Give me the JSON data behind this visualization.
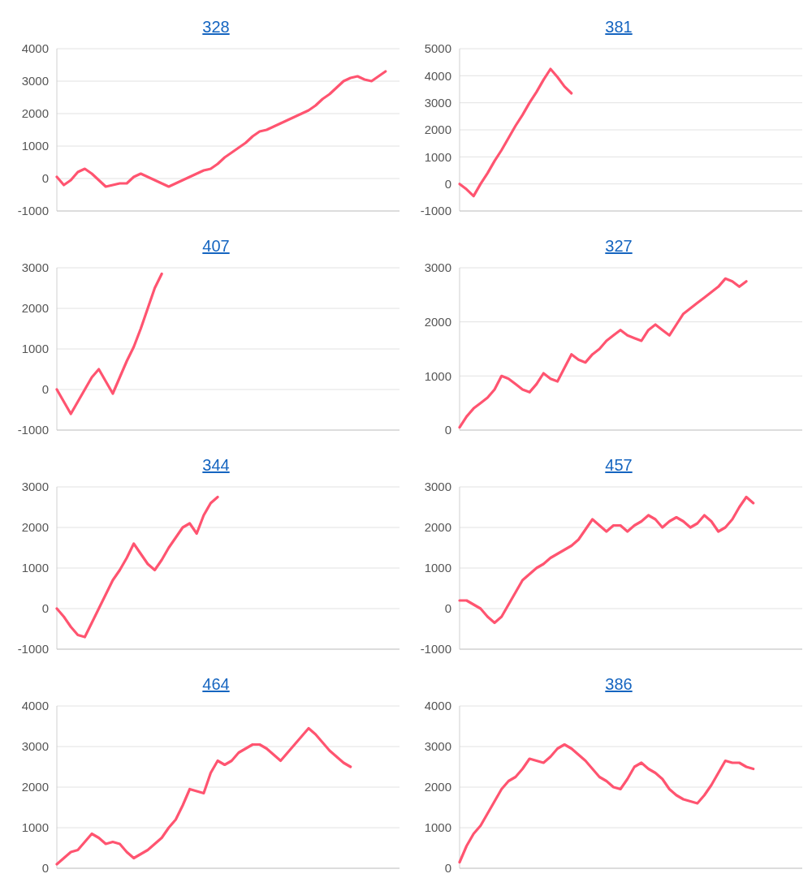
{
  "chart_data": [
    {
      "type": "line",
      "title": "328",
      "categories": [
        null,
        null,
        null,
        null,
        null,
        null,
        null,
        null,
        null,
        null,
        null,
        null,
        null,
        null,
        null,
        null,
        null,
        null,
        null,
        null,
        null,
        null,
        null,
        null,
        null,
        null,
        null,
        null,
        null,
        null,
        null,
        null,
        null,
        null,
        null,
        null,
        null,
        null,
        null,
        null,
        null,
        null,
        null,
        null,
        null,
        null,
        null,
        null,
        null,
        null
      ],
      "ylim": [
        -1000,
        4000
      ],
      "yticks": [
        -1000,
        0,
        1000,
        2000,
        3000,
        4000
      ],
      "grid": "y",
      "series": [
        {
          "color": "#ff5470",
          "values": [
            50,
            -200,
            -50,
            200,
            300,
            150,
            -50,
            -250,
            -200,
            -150,
            -150,
            50,
            150,
            50,
            -50,
            -150,
            -250,
            -150,
            -50,
            50,
            150,
            250,
            300,
            450,
            650,
            800,
            950,
            1100,
            1300,
            1450,
            1500,
            1600,
            1700,
            1800,
            1900,
            2000,
            2100,
            2250,
            2450,
            2600,
            2800,
            3000,
            3100,
            3150,
            3050,
            3000,
            3150,
            3300,
            null,
            null
          ]
        }
      ]
    },
    {
      "type": "line",
      "title": "381",
      "categories": [
        null,
        null,
        null,
        null,
        null,
        null,
        null,
        null,
        null,
        null,
        null,
        null,
        null,
        null,
        null,
        null,
        null,
        null,
        null,
        null,
        null,
        null,
        null,
        null,
        null,
        null,
        null,
        null,
        null,
        null,
        null,
        null,
        null,
        null,
        null,
        null,
        null,
        null,
        null,
        null,
        null,
        null,
        null,
        null,
        null,
        null,
        null,
        null,
        null,
        null
      ],
      "ylim": [
        -1000,
        5000
      ],
      "yticks": [
        -1000,
        0,
        1000,
        2000,
        3000,
        4000,
        5000
      ],
      "grid": "y",
      "series": [
        {
          "color": "#ff5470",
          "values": [
            0,
            -200,
            -450,
            0,
            400,
            850,
            1250,
            1700,
            2150,
            2550,
            3000,
            3400,
            3850,
            4250,
            3950,
            3600,
            3350,
            null,
            null,
            null,
            null,
            null,
            null,
            null,
            null,
            null,
            null,
            null,
            null,
            null,
            null,
            null,
            null,
            null,
            null,
            null,
            null,
            null,
            null,
            null,
            null,
            null,
            null,
            null,
            null,
            null,
            null,
            null,
            null,
            null
          ]
        }
      ]
    },
    {
      "type": "line",
      "title": "407",
      "categories": [
        null,
        null,
        null,
        null,
        null,
        null,
        null,
        null,
        null,
        null,
        null,
        null,
        null,
        null,
        null,
        null,
        null,
        null,
        null,
        null,
        null,
        null,
        null,
        null,
        null,
        null,
        null,
        null,
        null,
        null,
        null,
        null,
        null,
        null,
        null,
        null,
        null,
        null,
        null,
        null,
        null,
        null,
        null,
        null,
        null,
        null,
        null,
        null,
        null,
        null
      ],
      "ylim": [
        -1000,
        3000
      ],
      "yticks": [
        -1000,
        0,
        1000,
        2000,
        3000
      ],
      "grid": "y",
      "series": [
        {
          "color": "#ff5470",
          "values": [
            0,
            -300,
            -600,
            -300,
            0,
            300,
            500,
            200,
            -100,
            300,
            700,
            1050,
            1500,
            2000,
            2500,
            2850,
            null,
            null,
            null,
            null,
            null,
            null,
            null,
            null,
            null,
            null,
            null,
            null,
            null,
            null,
            null,
            null,
            null,
            null,
            null,
            null,
            null,
            null,
            null,
            null,
            null,
            null,
            null,
            null,
            null,
            null,
            null,
            null,
            null,
            null
          ]
        }
      ]
    },
    {
      "type": "line",
      "title": "327",
      "categories": [
        null,
        null,
        null,
        null,
        null,
        null,
        null,
        null,
        null,
        null,
        null,
        null,
        null,
        null,
        null,
        null,
        null,
        null,
        null,
        null,
        null,
        null,
        null,
        null,
        null,
        null,
        null,
        null,
        null,
        null,
        null,
        null,
        null,
        null,
        null,
        null,
        null,
        null,
        null,
        null,
        null,
        null,
        null,
        null,
        null,
        null,
        null,
        null,
        null,
        null
      ],
      "ylim": [
        0,
        3000
      ],
      "yticks": [
        0,
        1000,
        2000,
        3000
      ],
      "grid": "y",
      "series": [
        {
          "color": "#ff5470",
          "values": [
            50,
            250,
            400,
            500,
            600,
            750,
            1000,
            950,
            850,
            750,
            700,
            850,
            1050,
            950,
            900,
            1150,
            1400,
            1300,
            1250,
            1400,
            1500,
            1650,
            1750,
            1850,
            1750,
            1700,
            1650,
            1850,
            1950,
            1850,
            1750,
            1950,
            2150,
            2250,
            2350,
            2450,
            2550,
            2650,
            2800,
            2750,
            2650,
            2750,
            null,
            null,
            null,
            null,
            null,
            null,
            null,
            null
          ]
        }
      ]
    },
    {
      "type": "line",
      "title": "344",
      "categories": [
        null,
        null,
        null,
        null,
        null,
        null,
        null,
        null,
        null,
        null,
        null,
        null,
        null,
        null,
        null,
        null,
        null,
        null,
        null,
        null,
        null,
        null,
        null,
        null,
        null,
        null,
        null,
        null,
        null,
        null,
        null,
        null,
        null,
        null,
        null,
        null,
        null,
        null,
        null,
        null,
        null,
        null,
        null,
        null,
        null,
        null,
        null,
        null,
        null,
        null
      ],
      "ylim": [
        -1000,
        3000
      ],
      "yticks": [
        -1000,
        0,
        1000,
        2000,
        3000
      ],
      "grid": "y",
      "series": [
        {
          "color": "#ff5470",
          "values": [
            0,
            -200,
            -450,
            -650,
            -700,
            -350,
            0,
            350,
            700,
            950,
            1250,
            1600,
            1350,
            1100,
            950,
            1200,
            1500,
            1750,
            2000,
            2100,
            1850,
            2300,
            2600,
            2750,
            null,
            null,
            null,
            null,
            null,
            null,
            null,
            null,
            null,
            null,
            null,
            null,
            null,
            null,
            null,
            null,
            null,
            null,
            null,
            null,
            null,
            null,
            null,
            null,
            null,
            null
          ]
        }
      ]
    },
    {
      "type": "line",
      "title": "457",
      "categories": [
        null,
        null,
        null,
        null,
        null,
        null,
        null,
        null,
        null,
        null,
        null,
        null,
        null,
        null,
        null,
        null,
        null,
        null,
        null,
        null,
        null,
        null,
        null,
        null,
        null,
        null,
        null,
        null,
        null,
        null,
        null,
        null,
        null,
        null,
        null,
        null,
        null,
        null,
        null,
        null,
        null,
        null,
        null,
        null,
        null,
        null,
        null,
        null,
        null,
        null
      ],
      "ylim": [
        -1000,
        3000
      ],
      "yticks": [
        -1000,
        0,
        1000,
        2000,
        3000
      ],
      "grid": "y",
      "series": [
        {
          "color": "#ff5470",
          "values": [
            200,
            200,
            100,
            0,
            -200,
            -350,
            -200,
            100,
            400,
            700,
            850,
            1000,
            1100,
            1250,
            1350,
            1450,
            1550,
            1700,
            1950,
            2200,
            2050,
            1900,
            2050,
            2050,
            1900,
            2050,
            2150,
            2300,
            2200,
            2000,
            2150,
            2250,
            2150,
            2000,
            2100,
            2300,
            2150,
            1900,
            2000,
            2200,
            2500,
            2750,
            2600,
            null,
            null,
            null,
            null,
            null,
            null,
            null
          ]
        }
      ]
    },
    {
      "type": "line",
      "title": "464",
      "categories": [
        null,
        null,
        null,
        null,
        null,
        null,
        null,
        null,
        null,
        null,
        null,
        null,
        null,
        null,
        null,
        null,
        null,
        null,
        null,
        null,
        null,
        null,
        null,
        null,
        null,
        null,
        null,
        null,
        null,
        null,
        null,
        null,
        null,
        null,
        null,
        null,
        null,
        null,
        null,
        null,
        null,
        null,
        null,
        null,
        null,
        null,
        null,
        null,
        null,
        null
      ],
      "ylim": [
        0,
        4000
      ],
      "yticks": [
        0,
        1000,
        2000,
        3000,
        4000
      ],
      "grid": "y",
      "series": [
        {
          "color": "#ff5470",
          "values": [
            100,
            250,
            400,
            450,
            650,
            850,
            750,
            600,
            650,
            600,
            400,
            250,
            350,
            450,
            600,
            750,
            1000,
            1200,
            1550,
            1950,
            1900,
            1850,
            2350,
            2650,
            2550,
            2650,
            2850,
            2950,
            3050,
            3050,
            2950,
            2800,
            2650,
            2850,
            3050,
            3250,
            3450,
            3300,
            3100,
            2900,
            2750,
            2600,
            2500,
            null,
            null,
            null,
            null,
            null,
            null,
            null
          ]
        }
      ]
    },
    {
      "type": "line",
      "title": "386",
      "categories": [
        null,
        null,
        null,
        null,
        null,
        null,
        null,
        null,
        null,
        null,
        null,
        null,
        null,
        null,
        null,
        null,
        null,
        null,
        null,
        null,
        null,
        null,
        null,
        null,
        null,
        null,
        null,
        null,
        null,
        null,
        null,
        null,
        null,
        null,
        null,
        null,
        null,
        null,
        null,
        null,
        null,
        null,
        null,
        null,
        null,
        null,
        null,
        null,
        null,
        null
      ],
      "ylim": [
        0,
        4000
      ],
      "yticks": [
        0,
        1000,
        2000,
        3000,
        4000
      ],
      "grid": "y",
      "series": [
        {
          "color": "#ff5470",
          "values": [
            150,
            550,
            850,
            1050,
            1350,
            1650,
            1950,
            2150,
            2250,
            2450,
            2700,
            2650,
            2600,
            2750,
            2950,
            3050,
            2950,
            2800,
            2650,
            2450,
            2250,
            2150,
            2000,
            1950,
            2200,
            2500,
            2600,
            2450,
            2350,
            2200,
            1950,
            1800,
            1700,
            1650,
            1600,
            1800,
            2050,
            2350,
            2650,
            2600,
            2600,
            2500,
            2450,
            null,
            null,
            null,
            null,
            null,
            null,
            null
          ]
        }
      ]
    }
  ]
}
